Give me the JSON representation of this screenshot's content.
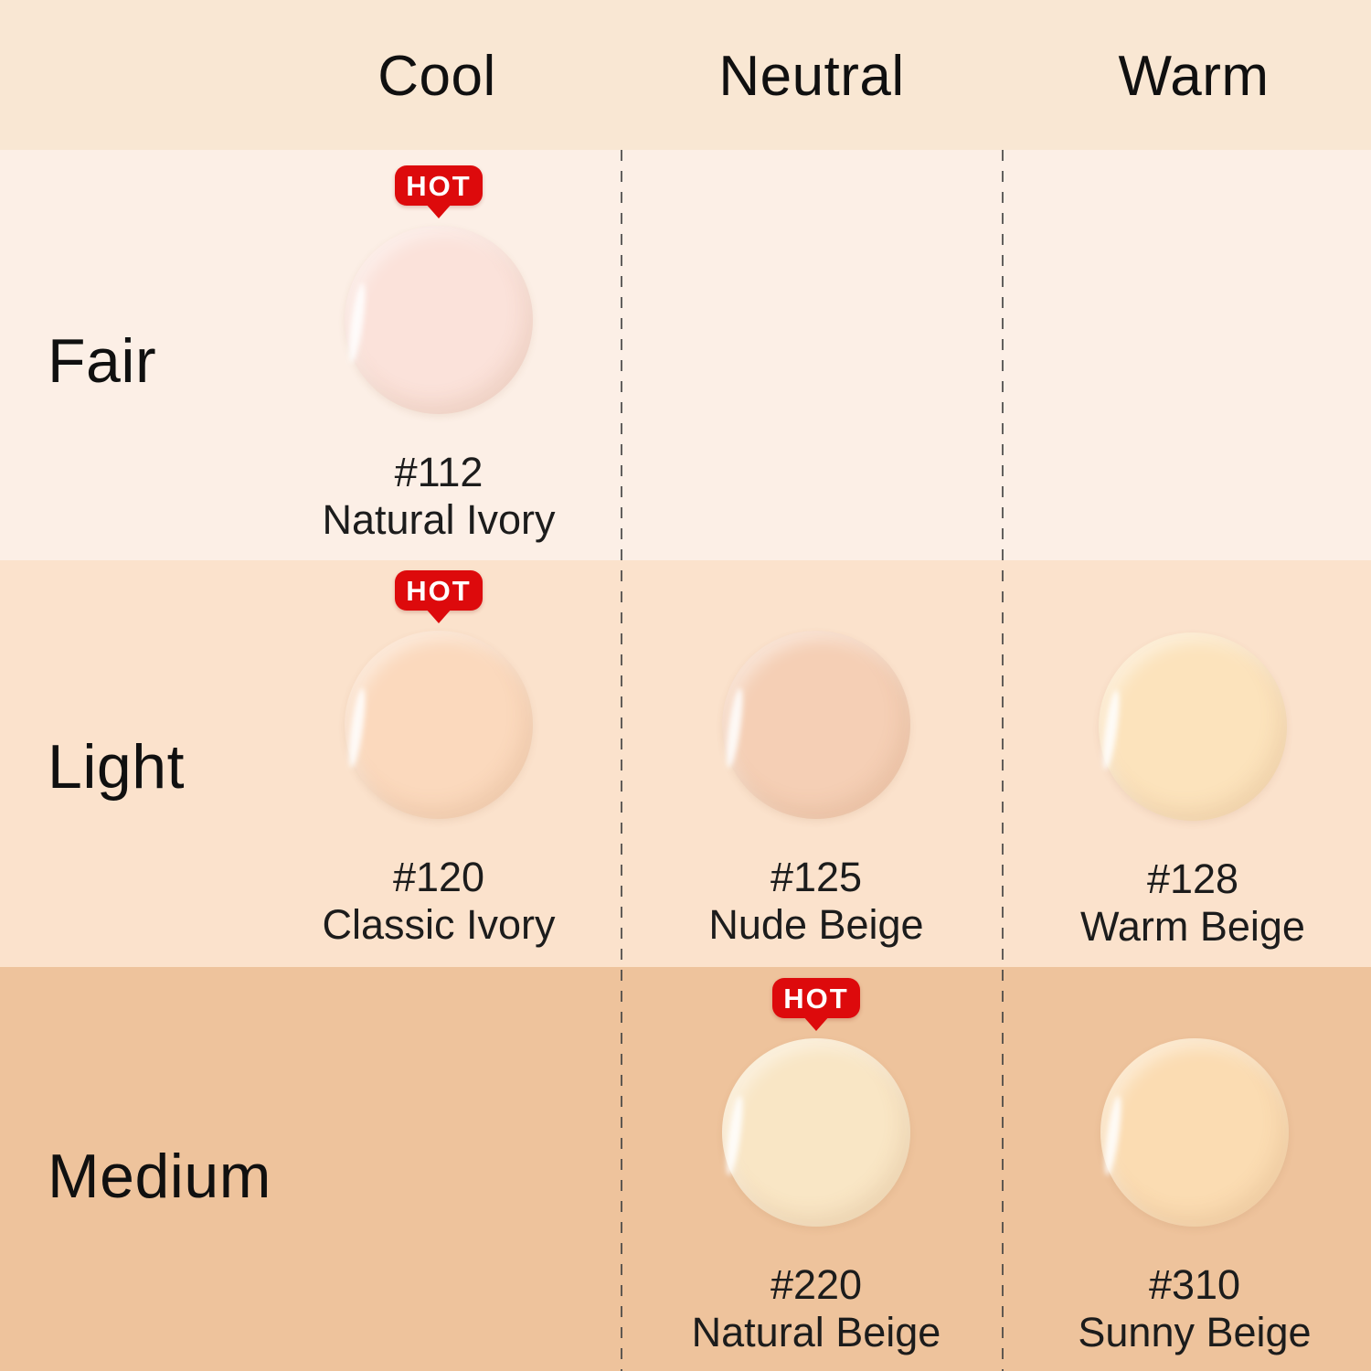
{
  "chart_data": {
    "type": "table",
    "columns": [
      "Cool",
      "Neutral",
      "Warm"
    ],
    "rows": [
      "Fair",
      "Light",
      "Medium"
    ],
    "hot_label": "HOT",
    "cells": [
      {
        "row": "Fair",
        "column": "Cool",
        "code": "#112",
        "name": "Natural Ivory",
        "hot": true,
        "swatch_color": "#fbe2da"
      },
      {
        "row": "Light",
        "column": "Cool",
        "code": "#120",
        "name": "Classic Ivory",
        "hot": true,
        "swatch_color": "#fbd9bd"
      },
      {
        "row": "Light",
        "column": "Neutral",
        "code": "#125",
        "name": "Nude Beige",
        "hot": false,
        "swatch_color": "#f5cfb5"
      },
      {
        "row": "Light",
        "column": "Warm",
        "code": "#128",
        "name": "Warm Beige",
        "hot": false,
        "swatch_color": "#fce3bc"
      },
      {
        "row": "Medium",
        "column": "Neutral",
        "code": "#220",
        "name": "Natural Beige",
        "hot": true,
        "swatch_color": "#f9e6c5"
      },
      {
        "row": "Medium",
        "column": "Warm",
        "code": "#310",
        "name": "Sunny Beige",
        "hot": false,
        "swatch_color": "#fbdcb2"
      }
    ]
  },
  "colors": {
    "header_band": "#f9e7d3",
    "fair_band": "#fcefe6",
    "light_band": "#fbe2cc",
    "medium_band": "#eec39c",
    "hot_red": "#dd0a0c",
    "divider": "#3f3f3f",
    "text": "#161616"
  }
}
